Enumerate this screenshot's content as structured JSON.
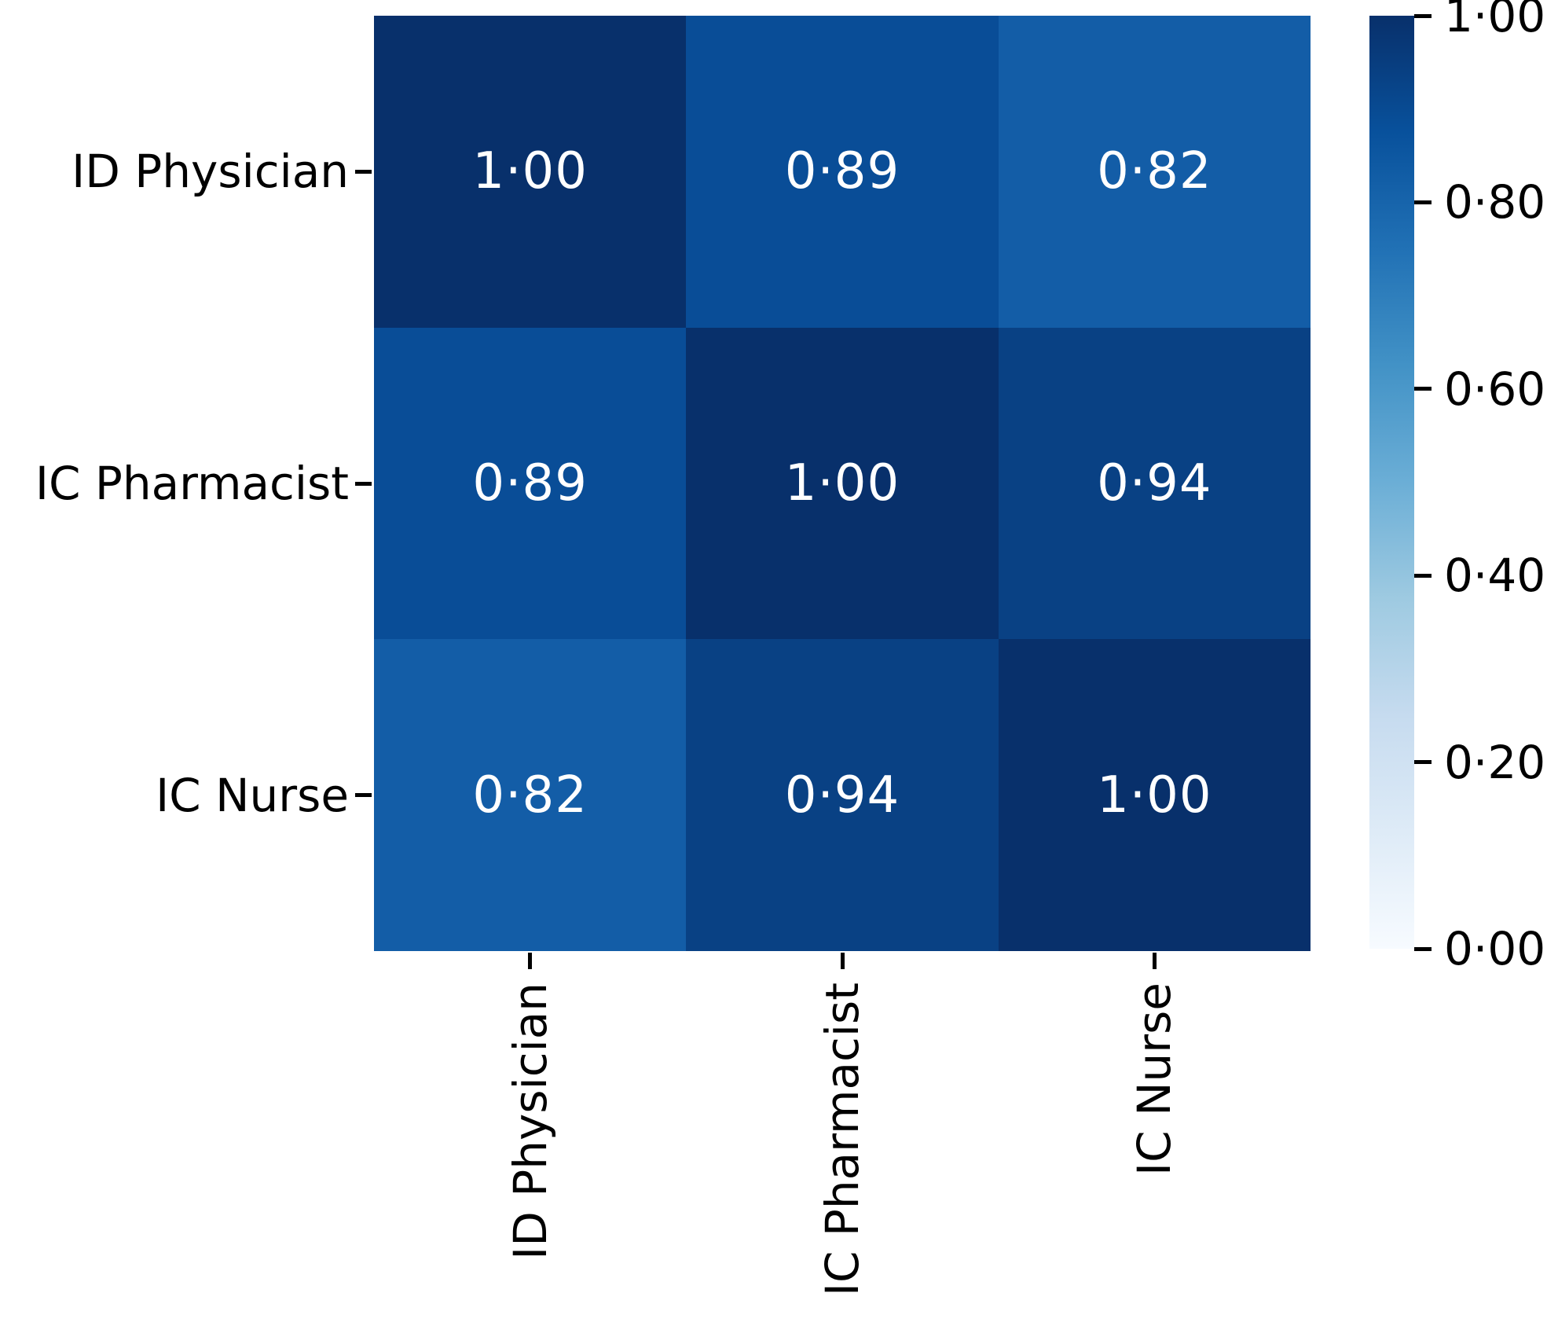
{
  "figure": {
    "background_color": "#ffffff",
    "text_color": "#000000"
  },
  "chart_data": {
    "type": "heatmap",
    "title": "",
    "xlabel": "",
    "ylabel": "",
    "rows": [
      "ID Physician",
      "IC Pharmacist",
      "IC Nurse"
    ],
    "columns": [
      "ID Physician",
      "IC Pharmacist",
      "IC Nurse"
    ],
    "matrix": [
      [
        1.0,
        0.89,
        0.82
      ],
      [
        0.89,
        1.0,
        0.94
      ],
      [
        0.82,
        0.94,
        1.0
      ]
    ],
    "cell_labels": [
      [
        "1·00",
        "0·89",
        "0·82"
      ],
      [
        "0·89",
        "1·00",
        "0·94"
      ],
      [
        "0·82",
        "0·94",
        "1·00"
      ]
    ],
    "cell_text_color": "#ffffff",
    "value_colors": {
      "1.00": "#08306b",
      "0.94": "#094184",
      "0.89": "#094d97",
      "0.82": "#135da7"
    },
    "colormap": "Blues",
    "grid": false,
    "legend_position": "none",
    "colorbar": {
      "position": "right",
      "min": 0.0,
      "max": 1.0,
      "tick_values": [
        1.0,
        0.8,
        0.6,
        0.4,
        0.2,
        0.0
      ],
      "tick_labels": [
        "1·00",
        "0·80",
        "0·60",
        "0·40",
        "0·20",
        "0·00"
      ],
      "gradient_stops_top_to_bottom": [
        "#08306b",
        "#08519c",
        "#2171b5",
        "#4292c6",
        "#6baed6",
        "#9ecae1",
        "#c6dbef",
        "#deebf7",
        "#f7fbff"
      ]
    }
  }
}
